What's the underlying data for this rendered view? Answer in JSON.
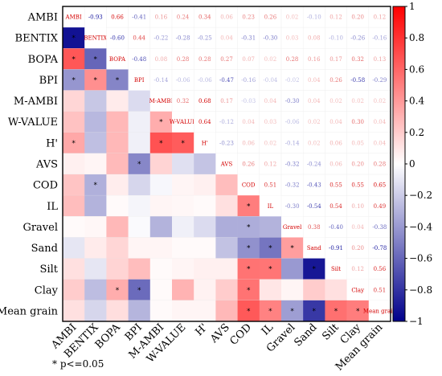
{
  "chart_data": {
    "type": "heatmap",
    "variables": [
      "AMBI",
      "BENTIX",
      "BOPA",
      "BPI",
      "M-AMBI",
      "W-VALUE",
      "H'",
      "AVS",
      "COD",
      "IL",
      "Gravel",
      "Sand",
      "Silt",
      "Clay",
      "Mean grain"
    ],
    "matrix": [
      [
        1,
        -0.93,
        0.66,
        -0.41,
        0.16,
        0.24,
        0.34,
        0.06,
        0.23,
        0.26,
        0.02,
        -0.1,
        0.12,
        0.2,
        0.12
      ],
      [
        -0.93,
        1,
        -0.6,
        0.44,
        -0.22,
        -0.28,
        -0.25,
        0.04,
        -0.31,
        -0.3,
        0.03,
        0.08,
        -0.1,
        -0.26,
        -0.16
      ],
      [
        0.66,
        -0.6,
        1,
        -0.48,
        0.08,
        0.28,
        0.28,
        0.27,
        0.07,
        0.02,
        0.28,
        0.16,
        0.17,
        0.32,
        0.13
      ],
      [
        -0.41,
        0.44,
        -0.48,
        1,
        -0.14,
        -0.06,
        -0.06,
        -0.47,
        -0.16,
        -0.04,
        -0.02,
        0.04,
        0.26,
        -0.58,
        -0.29
      ],
      [
        0.16,
        -0.22,
        0.08,
        -0.14,
        1,
        0.32,
        0.68,
        0.17,
        -0.03,
        0.04,
        -0.3,
        0.04,
        0.02,
        0.02,
        0.02
      ],
      [
        0.24,
        -0.28,
        0.28,
        -0.06,
        0.32,
        1,
        0.64,
        -0.12,
        0.04,
        0.03,
        -0.06,
        0.02,
        0.04,
        0.3,
        0.04
      ],
      [
        0.34,
        -0.25,
        0.28,
        -0.06,
        0.68,
        0.64,
        1,
        -0.23,
        0.06,
        0.02,
        -0.14,
        0.02,
        0.06,
        0.05,
        0.04
      ],
      [
        0.06,
        0.04,
        0.27,
        -0.47,
        0.17,
        -0.12,
        -0.23,
        1,
        0.26,
        0.12,
        -0.32,
        -0.24,
        0.06,
        0.2,
        0.28
      ],
      [
        0.23,
        -0.31,
        0.07,
        -0.16,
        -0.03,
        0.04,
        0.06,
        0.26,
        1,
        0.51,
        -0.32,
        -0.43,
        0.55,
        0.55,
        0.65
      ],
      [
        0.26,
        -0.3,
        0.02,
        -0.04,
        0.04,
        0.03,
        0.02,
        0.12,
        0.51,
        1,
        -0.3,
        -0.54,
        0.54,
        0.1,
        0.49
      ],
      [
        0.02,
        0.03,
        0.28,
        -0.02,
        -0.3,
        -0.06,
        -0.14,
        -0.32,
        -0.32,
        -0.3,
        1,
        0.38,
        -0.4,
        0.04,
        -0.38
      ],
      [
        -0.1,
        0.08,
        0.16,
        0.04,
        0.04,
        0.02,
        0.02,
        -0.24,
        -0.43,
        -0.54,
        0.38,
        1,
        -0.91,
        0.2,
        -0.78
      ],
      [
        0.12,
        -0.1,
        0.17,
        0.26,
        0.02,
        0.04,
        0.06,
        0.06,
        0.55,
        0.54,
        -0.4,
        -0.91,
        1,
        0.12,
        0.56
      ],
      [
        0.2,
        -0.26,
        0.32,
        -0.58,
        0.02,
        0.3,
        0.05,
        0.2,
        0.55,
        0.1,
        0.04,
        0.2,
        0.12,
        1,
        0.51
      ],
      [
        0.12,
        -0.16,
        0.13,
        -0.29,
        0.02,
        0.04,
        0.04,
        0.28,
        0.65,
        0.49,
        -0.38,
        -0.78,
        0.56,
        0.51,
        1
      ]
    ],
    "significant_lower": [
      [
        1,
        0
      ],
      [
        2,
        0
      ],
      [
        2,
        1
      ],
      [
        3,
        0
      ],
      [
        3,
        1
      ],
      [
        3,
        2
      ],
      [
        5,
        4
      ],
      [
        6,
        0
      ],
      [
        6,
        4
      ],
      [
        6,
        5
      ],
      [
        7,
        3
      ],
      [
        8,
        1
      ],
      [
        9,
        8
      ],
      [
        10,
        8
      ],
      [
        11,
        8
      ],
      [
        11,
        9
      ],
      [
        11,
        10
      ],
      [
        12,
        8
      ],
      [
        12,
        9
      ],
      [
        12,
        11
      ],
      [
        13,
        2
      ],
      [
        13,
        3
      ],
      [
        13,
        8
      ],
      [
        14,
        8
      ],
      [
        14,
        9
      ],
      [
        14,
        10
      ],
      [
        14,
        11
      ],
      [
        14,
        12
      ],
      [
        14,
        13
      ]
    ],
    "upper_triangle_text_shown": true,
    "colorbar": {
      "min": -1,
      "max": 1,
      "ticks": [
        "1",
        "0.8",
        "0.6",
        "0.4",
        "0.2",
        "0",
        "−0.2",
        "−0.4",
        "−0.6",
        "−0.8",
        "−1"
      ]
    },
    "colors": {
      "positive": "#ff0000",
      "negative": "#00008b",
      "zero": "#ffffff",
      "positive_text": "#d40000",
      "negative_text": "#1a1aa0"
    },
    "legend_note": "* p<=0.05"
  }
}
